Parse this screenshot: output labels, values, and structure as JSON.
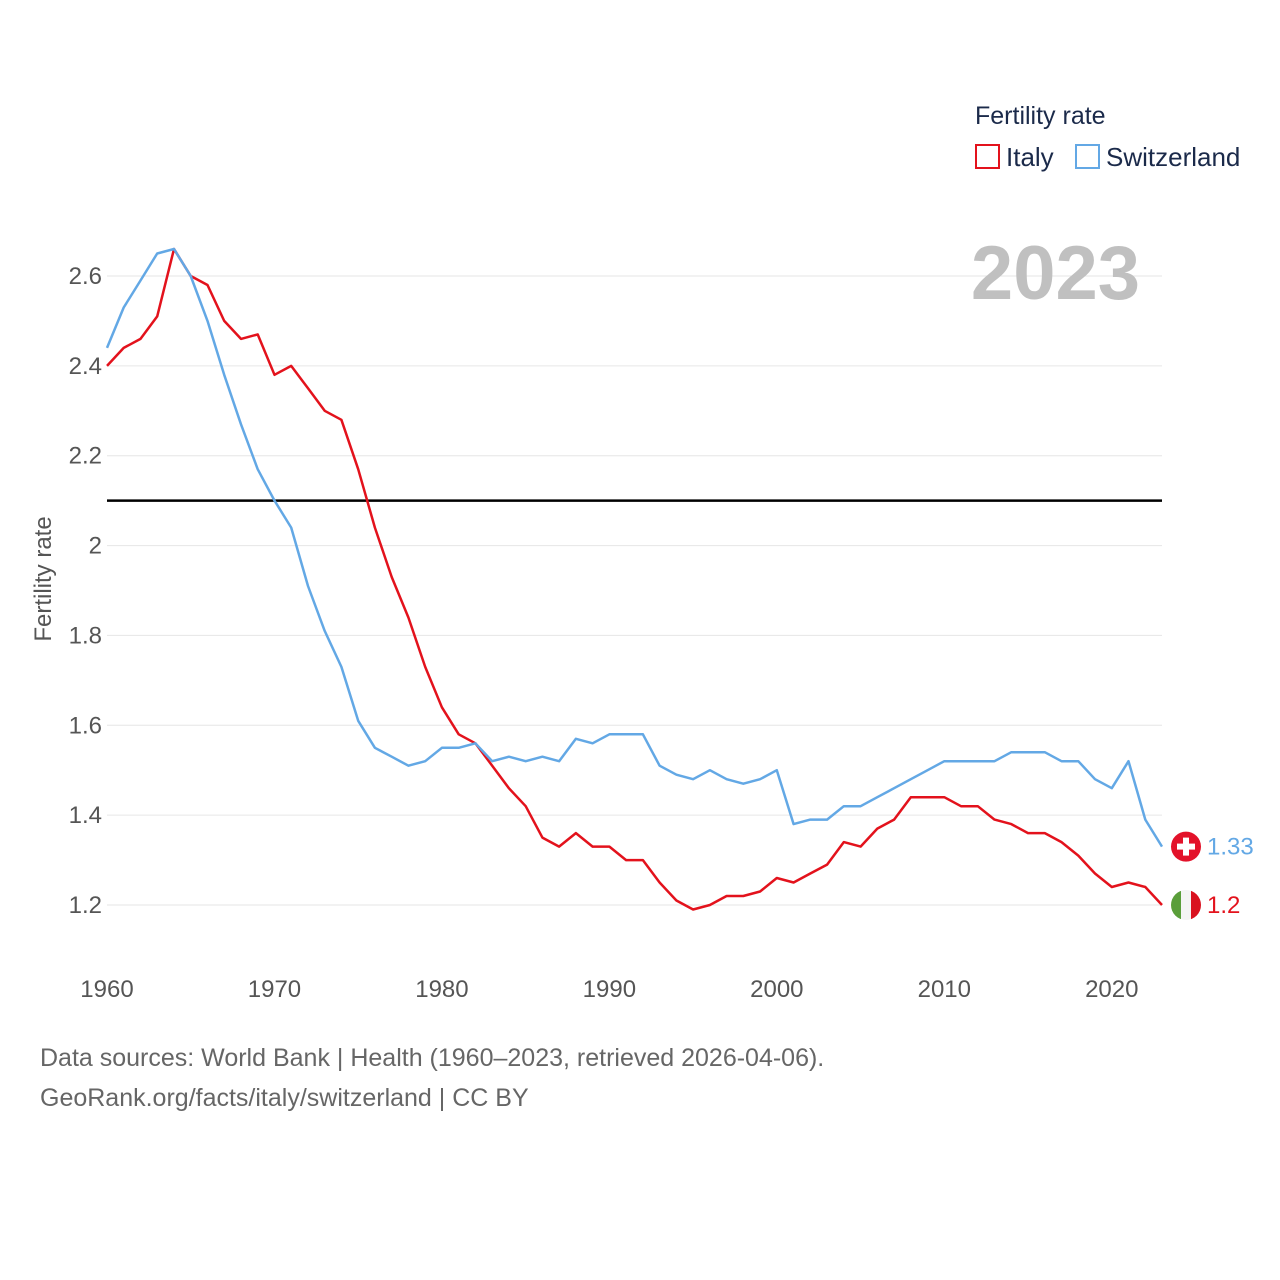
{
  "chart_data": {
    "type": "line",
    "ylabel": "Fertility rate",
    "xlim": [
      1960,
      2023
    ],
    "ylim": [
      1.05,
      2.75
    ],
    "x_ticks": [
      1960,
      1970,
      1980,
      1990,
      2000,
      2010,
      2020
    ],
    "y_ticks": [
      1.2,
      1.4,
      1.6,
      1.8,
      2.0,
      2.2,
      2.4,
      2.6
    ],
    "y_tick_labels": [
      "1.2",
      "1.4",
      "1.6",
      "1.8",
      "2",
      "2.2",
      "2.4",
      "2.6"
    ],
    "reference_line": 2.1,
    "year_label": "2023",
    "legend": {
      "title": "Fertility rate",
      "position": "top-right"
    },
    "x": [
      1960,
      1961,
      1962,
      1963,
      1964,
      1965,
      1966,
      1967,
      1968,
      1969,
      1970,
      1971,
      1972,
      1973,
      1974,
      1975,
      1976,
      1977,
      1978,
      1979,
      1980,
      1981,
      1982,
      1983,
      1984,
      1985,
      1986,
      1987,
      1988,
      1989,
      1990,
      1991,
      1992,
      1993,
      1994,
      1995,
      1996,
      1997,
      1998,
      1999,
      2000,
      2001,
      2002,
      2003,
      2004,
      2005,
      2006,
      2007,
      2008,
      2009,
      2010,
      2011,
      2012,
      2013,
      2014,
      2015,
      2016,
      2017,
      2018,
      2019,
      2020,
      2021,
      2022,
      2023
    ],
    "series": [
      {
        "name": "Italy",
        "color": "#e3121c",
        "end_label": "1.2",
        "values": [
          2.4,
          2.44,
          2.46,
          2.51,
          2.66,
          2.6,
          2.58,
          2.5,
          2.46,
          2.47,
          2.38,
          2.4,
          2.35,
          2.3,
          2.28,
          2.17,
          2.04,
          1.93,
          1.84,
          1.73,
          1.64,
          1.58,
          1.56,
          1.51,
          1.46,
          1.42,
          1.35,
          1.33,
          1.36,
          1.33,
          1.33,
          1.3,
          1.3,
          1.25,
          1.21,
          1.19,
          1.2,
          1.22,
          1.22,
          1.23,
          1.26,
          1.25,
          1.27,
          1.29,
          1.34,
          1.33,
          1.37,
          1.39,
          1.44,
          1.44,
          1.44,
          1.42,
          1.42,
          1.39,
          1.38,
          1.36,
          1.36,
          1.34,
          1.31,
          1.27,
          1.24,
          1.25,
          1.24,
          1.2
        ]
      },
      {
        "name": "Switzerland",
        "color": "#63a8e5",
        "end_label": "1.33",
        "values": [
          2.44,
          2.53,
          2.59,
          2.65,
          2.66,
          2.6,
          2.5,
          2.38,
          2.27,
          2.17,
          2.1,
          2.04,
          1.91,
          1.81,
          1.73,
          1.61,
          1.55,
          1.53,
          1.51,
          1.52,
          1.55,
          1.55,
          1.56,
          1.52,
          1.53,
          1.52,
          1.53,
          1.52,
          1.57,
          1.56,
          1.58,
          1.58,
          1.58,
          1.51,
          1.49,
          1.48,
          1.5,
          1.48,
          1.47,
          1.48,
          1.5,
          1.38,
          1.39,
          1.39,
          1.42,
          1.42,
          1.44,
          1.46,
          1.48,
          1.5,
          1.52,
          1.52,
          1.52,
          1.52,
          1.54,
          1.54,
          1.54,
          1.52,
          1.52,
          1.48,
          1.46,
          1.52,
          1.39,
          1.33
        ]
      }
    ]
  },
  "footer": {
    "sources": "Data sources: World Bank | Health (1960–2023, retrieved 2026-04-06).",
    "credit": "GeoRank.org/facts/italy/switzerland | CC BY"
  }
}
